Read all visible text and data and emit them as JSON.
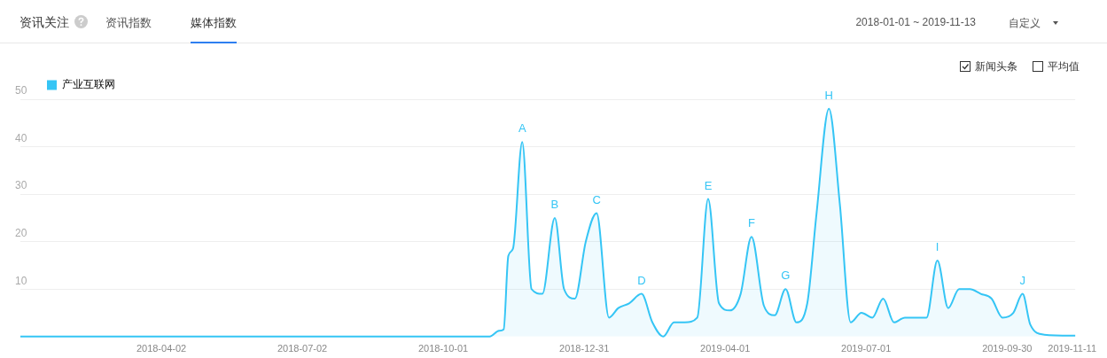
{
  "chart_data": {
    "type": "area",
    "annotations": [
      "资讯关注",
      "资讯指数",
      "媒体指数",
      "2018-01-01 ~ 2019-11-13",
      "自定义",
      "新闻头条",
      "平均值",
      {
        "text": "A",
        "x": "2018-11-21",
        "y": 41
      },
      {
        "text": "B",
        "x": "2018-12-12",
        "y": 25
      },
      {
        "text": "C",
        "x": "2019-01-08",
        "y": 26
      },
      {
        "text": "D",
        "x": "2019-02-06",
        "y": 9
      },
      {
        "text": "E",
        "x": "2019-03-21",
        "y": 29
      },
      {
        "text": "F",
        "x": "2019-04-18",
        "y": 21
      },
      {
        "text": "G",
        "x": "2019-05-10",
        "y": 10
      },
      {
        "text": "H",
        "x": "2019-06-07",
        "y": 48
      },
      {
        "text": "I",
        "x": "2019-08-16",
        "y": 16
      },
      {
        "text": "J",
        "x": "2019-10-10",
        "y": 9
      }
    ],
    "series": [
      {
        "name": "产业互联网",
        "color": "#35c5f5",
        "x": [
          "2018-01-01",
          "2018-10-31",
          "2018-11-06",
          "2018-11-09",
          "2018-11-12",
          "2018-11-15",
          "2018-11-21",
          "2018-11-27",
          "2018-12-04",
          "2018-12-12",
          "2018-12-18",
          "2018-12-25",
          "2019-01-01",
          "2019-01-08",
          "2019-01-16",
          "2019-01-22",
          "2019-01-29",
          "2019-02-06",
          "2019-02-13",
          "2019-02-20",
          "2019-02-27",
          "2019-03-06",
          "2019-03-14",
          "2019-03-21",
          "2019-03-28",
          "2019-04-04",
          "2019-04-11",
          "2019-04-18",
          "2019-04-26",
          "2019-05-03",
          "2019-05-10",
          "2019-05-17",
          "2019-05-24",
          "2019-05-30",
          "2019-06-07",
          "2019-06-14",
          "2019-06-21",
          "2019-06-28",
          "2019-07-05",
          "2019-07-12",
          "2019-07-19",
          "2019-07-26",
          "2019-08-09",
          "2019-08-16",
          "2019-08-23",
          "2019-08-30",
          "2019-09-06",
          "2019-09-13",
          "2019-09-20",
          "2019-09-27",
          "2019-10-04",
          "2019-10-10",
          "2019-10-15",
          "2019-10-24",
          "2019-11-13"
        ],
        "values": [
          0,
          0,
          1.2,
          1.5,
          17,
          18.5,
          41,
          10,
          9,
          25,
          10,
          8,
          20,
          26,
          4,
          6,
          7,
          9,
          3,
          0,
          3,
          3,
          4,
          29,
          7,
          5.5,
          9,
          21,
          6.5,
          4.5,
          10,
          3,
          7,
          26,
          48,
          28,
          3,
          5,
          4,
          8,
          3,
          4,
          4,
          16,
          6,
          10,
          10,
          9,
          8,
          4,
          5,
          9,
          2.5,
          0.4,
          0.2
        ]
      }
    ],
    "xlim": [
      "2018-01-01",
      "2019-11-13"
    ],
    "xticks": [
      "2018-04-02",
      "2018-07-02",
      "2018-10-01",
      "2018-12-31",
      "2019-04-01",
      "2019-07-01",
      "2019-09-30",
      "2019-11-11"
    ],
    "ylim": [
      0,
      50
    ],
    "yticks": [
      10,
      20,
      30,
      40,
      50
    ],
    "grid": "y",
    "legend": "top left",
    "marker": "none"
  }
}
